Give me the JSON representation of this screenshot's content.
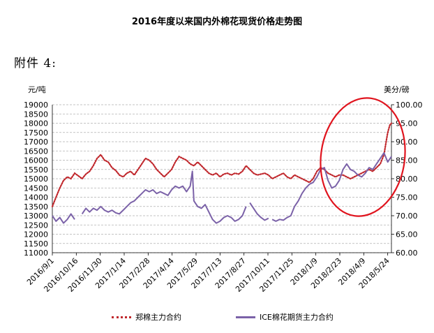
{
  "page": {
    "annex_label": "附件 4:"
  },
  "chart_data": {
    "type": "line",
    "title": "2016年度以来国内外棉花现货价格走势图",
    "left_unit": "元/吨",
    "right_unit": "美分/磅",
    "x_ticks": [
      "2016/9/1",
      "2016/10/16",
      "2016/11/30",
      "2017/1/14",
      "2017/2/28",
      "2017/4/14",
      "2017/5/29",
      "2017/7/13",
      "2017/8/27",
      "2017/10/11",
      "2017/11/25",
      "2018/1/9",
      "2018/2/23",
      "2018/4/9",
      "2018/5/24"
    ],
    "y_left_ticks": [
      "19000",
      "18500",
      "18000",
      "17500",
      "17000",
      "16500",
      "16000",
      "15500",
      "15000",
      "14500",
      "14000",
      "13500",
      "13000",
      "12500",
      "12000",
      "11500",
      "11000"
    ],
    "y_right_ticks": [
      "100.00",
      "95.00",
      "90.00",
      "85.00",
      "80.00",
      "75.00",
      "70.00",
      "65.00",
      "60.00"
    ],
    "y_left_range": [
      11000,
      19000
    ],
    "y_right_range": [
      60,
      100
    ],
    "x_range": [
      "2016/9/1",
      "2018/5/31"
    ],
    "grid": "horizontal-dashed",
    "legend_position": "bottom",
    "series": [
      {
        "name": "郑棉主力合约",
        "axis": "left",
        "color": "#c0282d",
        "style": "dotted",
        "points": [
          [
            "2016/9/1",
            13500
          ],
          [
            "2016/9/8",
            14000
          ],
          [
            "2016/9/15",
            14500
          ],
          [
            "2016/9/22",
            14900
          ],
          [
            "2016/9/29",
            15100
          ],
          [
            "2016/10/6",
            15000
          ],
          [
            "2016/10/13",
            15300
          ],
          [
            "2016/10/20",
            15150
          ],
          [
            "2016/10/27",
            15000
          ],
          [
            "2016/11/3",
            15250
          ],
          [
            "2016/11/10",
            15400
          ],
          [
            "2016/11/17",
            15700
          ],
          [
            "2016/11/24",
            16100
          ],
          [
            "2016/12/1",
            16300
          ],
          [
            "2016/12/8",
            16000
          ],
          [
            "2016/12/15",
            15900
          ],
          [
            "2016/12/22",
            15600
          ],
          [
            "2016/12/29",
            15450
          ],
          [
            "2017/1/5",
            15200
          ],
          [
            "2017/1/12",
            15100
          ],
          [
            "2017/1/19",
            15300
          ],
          [
            "2017/1/26",
            15400
          ],
          [
            "2017/2/2",
            15200
          ],
          [
            "2017/2/9",
            15500
          ],
          [
            "2017/2/16",
            15800
          ],
          [
            "2017/2/23",
            16100
          ],
          [
            "2017/3/2",
            16000
          ],
          [
            "2017/3/9",
            15800
          ],
          [
            "2017/3/16",
            15500
          ],
          [
            "2017/3/23",
            15300
          ],
          [
            "2017/3/30",
            15100
          ],
          [
            "2017/4/6",
            15300
          ],
          [
            "2017/4/13",
            15500
          ],
          [
            "2017/4/20",
            15900
          ],
          [
            "2017/4/27",
            16200
          ],
          [
            "2017/5/4",
            16100
          ],
          [
            "2017/5/11",
            16000
          ],
          [
            "2017/5/18",
            15800
          ],
          [
            "2017/5/25",
            15700
          ],
          [
            "2017/6/1",
            15900
          ],
          [
            "2017/6/8",
            15700
          ],
          [
            "2017/6/15",
            15500
          ],
          [
            "2017/6/22",
            15300
          ],
          [
            "2017/6/29",
            15200
          ],
          [
            "2017/7/6",
            15300
          ],
          [
            "2017/7/13",
            15100
          ],
          [
            "2017/7/20",
            15250
          ],
          [
            "2017/7/27",
            15300
          ],
          [
            "2017/8/3",
            15200
          ],
          [
            "2017/8/10",
            15300
          ],
          [
            "2017/8/17",
            15250
          ],
          [
            "2017/8/24",
            15400
          ],
          [
            "2017/8/31",
            15700
          ],
          [
            "2017/9/7",
            15500
          ],
          [
            "2017/9/14",
            15300
          ],
          [
            "2017/9/21",
            15200
          ],
          [
            "2017/9/28",
            15250
          ],
          [
            "2017/10/5",
            15300
          ],
          [
            "2017/10/12",
            15200
          ],
          [
            "2017/10/19",
            15000
          ],
          [
            "2017/10/26",
            15100
          ],
          [
            "2017/11/2",
            15200
          ],
          [
            "2017/11/9",
            15300
          ],
          [
            "2017/11/16",
            15100
          ],
          [
            "2017/11/23",
            15000
          ],
          [
            "2017/11/30",
            15200
          ],
          [
            "2017/12/7",
            15100
          ],
          [
            "2017/12/14",
            15000
          ],
          [
            "2017/12/21",
            14900
          ],
          [
            "2017/12/28",
            14800
          ],
          [
            "2018/1/4",
            15000
          ],
          [
            "2018/1/11",
            15400
          ],
          [
            "2018/1/18",
            15600
          ],
          [
            "2018/1/25",
            15500
          ],
          [
            "2018/2/1",
            15300
          ],
          [
            "2018/2/8",
            15200
          ],
          [
            "2018/2/15",
            15100
          ],
          [
            "2018/2/22",
            15200
          ],
          [
            "2018/3/1",
            15200
          ],
          [
            "2018/3/8",
            15100
          ],
          [
            "2018/3/15",
            15000
          ],
          [
            "2018/3/22",
            15100
          ],
          [
            "2018/3/29",
            15200
          ],
          [
            "2018/4/5",
            15300
          ],
          [
            "2018/4/12",
            15400
          ],
          [
            "2018/4/19",
            15500
          ],
          [
            "2018/4/26",
            15400
          ],
          [
            "2018/5/3",
            15600
          ],
          [
            "2018/5/10",
            15800
          ],
          [
            "2018/5/17",
            16300
          ],
          [
            "2018/5/21",
            17000
          ],
          [
            "2018/5/24",
            17500
          ],
          [
            "2018/5/28",
            17900
          ],
          [
            "2018/5/31",
            18000
          ]
        ]
      },
      {
        "name": "ICE棉花期货主力合约",
        "axis": "right",
        "color": "#7b62a8",
        "style": "solid",
        "segments": [
          [
            [
              "2016/9/1",
              70.0
            ],
            [
              "2016/9/8",
              68.5
            ],
            [
              "2016/9/15",
              69.5
            ],
            [
              "2016/9/22",
              68.0
            ],
            [
              "2016/9/29",
              69.0
            ],
            [
              "2016/10/6",
              70.5
            ],
            [
              "2016/10/13",
              69.0
            ]
          ],
          [
            [
              "2016/10/27",
              70.5
            ],
            [
              "2016/11/3",
              72.0
            ],
            [
              "2016/11/10",
              71.0
            ],
            [
              "2016/11/17",
              72.0
            ],
            [
              "2016/11/24",
              71.5
            ],
            [
              "2016/12/1",
              72.5
            ],
            [
              "2016/12/8",
              71.5
            ],
            [
              "2016/12/15",
              71.0
            ],
            [
              "2016/12/22",
              71.5
            ],
            [
              "2016/12/29",
              70.8
            ],
            [
              "2017/1/5",
              70.5
            ],
            [
              "2017/1/12",
              71.5
            ],
            [
              "2017/1/19",
              72.5
            ],
            [
              "2017/1/26",
              73.5
            ],
            [
              "2017/2/2",
              74.0
            ],
            [
              "2017/2/9",
              75.0
            ],
            [
              "2017/2/16",
              76.0
            ],
            [
              "2017/2/23",
              77.0
            ],
            [
              "2017/3/2",
              76.5
            ],
            [
              "2017/3/9",
              77.0
            ],
            [
              "2017/3/16",
              76.0
            ],
            [
              "2017/3/23",
              76.5
            ],
            [
              "2017/3/30",
              76.0
            ],
            [
              "2017/4/6",
              75.5
            ],
            [
              "2017/4/13",
              77.0
            ],
            [
              "2017/4/20",
              78.0
            ],
            [
              "2017/4/27",
              77.5
            ],
            [
              "2017/5/4",
              78.0
            ],
            [
              "2017/5/11",
              76.5
            ],
            [
              "2017/5/18",
              78.0
            ],
            [
              "2017/5/22",
              82.0
            ],
            [
              "2017/5/25",
              74.0
            ],
            [
              "2017/6/1",
              72.5
            ],
            [
              "2017/6/8",
              72.0
            ],
            [
              "2017/6/15",
              73.0
            ],
            [
              "2017/6/22",
              71.0
            ],
            [
              "2017/6/29",
              69.0
            ],
            [
              "2017/7/6",
              68.0
            ],
            [
              "2017/7/13",
              68.5
            ],
            [
              "2017/7/20",
              69.5
            ],
            [
              "2017/7/27",
              70.0
            ],
            [
              "2017/8/3",
              69.5
            ],
            [
              "2017/8/10",
              68.5
            ],
            [
              "2017/8/17",
              69.0
            ],
            [
              "2017/8/24",
              70.0
            ],
            [
              "2017/8/31",
              72.5
            ]
          ],
          [
            [
              "2017/9/7",
              73.5
            ],
            [
              "2017/9/14",
              72.0
            ],
            [
              "2017/9/21",
              70.5
            ],
            [
              "2017/9/28",
              69.5
            ],
            [
              "2017/10/5",
              68.8
            ],
            [
              "2017/10/12",
              69.3
            ]
          ],
          [
            [
              "2017/10/19",
              69.0
            ],
            [
              "2017/10/26",
              68.5
            ],
            [
              "2017/11/2",
              69.0
            ],
            [
              "2017/11/9",
              68.8
            ],
            [
              "2017/11/16",
              69.5
            ],
            [
              "2017/11/23",
              70.0
            ],
            [
              "2017/11/30",
              72.5
            ],
            [
              "2017/12/7",
              74.0
            ],
            [
              "2017/12/14",
              76.0
            ],
            [
              "2017/12/21",
              77.5
            ],
            [
              "2017/12/28",
              78.5
            ],
            [
              "2018/1/4",
              79.0
            ],
            [
              "2018/1/11",
              80.5
            ],
            [
              "2018/1/18",
              82.5
            ],
            [
              "2018/1/25",
              83.0
            ],
            [
              "2018/2/1",
              79.5
            ],
            [
              "2018/2/8",
              77.5
            ],
            [
              "2018/2/15",
              78.0
            ],
            [
              "2018/2/22",
              79.5
            ],
            [
              "2018/3/1",
              82.5
            ],
            [
              "2018/3/8",
              84.0
            ],
            [
              "2018/3/15",
              82.5
            ],
            [
              "2018/3/22",
              82.0
            ],
            [
              "2018/3/29",
              81.0
            ],
            [
              "2018/4/5",
              80.5
            ],
            [
              "2018/4/12",
              81.5
            ],
            [
              "2018/4/19",
              83.0
            ],
            [
              "2018/4/26",
              82.5
            ],
            [
              "2018/5/3",
              84.0
            ],
            [
              "2018/5/10",
              85.5
            ],
            [
              "2018/5/17",
              87.0
            ],
            [
              "2018/5/24",
              84.5
            ],
            [
              "2018/5/31",
              86.0
            ]
          ]
        ]
      }
    ],
    "annotation": "red ellipse around 2018 price rise"
  }
}
